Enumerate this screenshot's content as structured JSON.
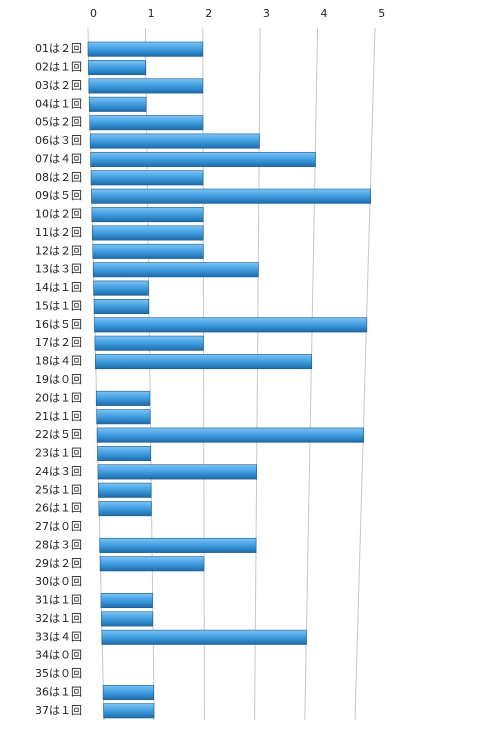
{
  "chart_data": {
    "type": "bar",
    "orientation": "horizontal",
    "categories": [
      "01は２回",
      "02は１回",
      "03は２回",
      "04は１回",
      "05は２回",
      "06は３回",
      "07は４回",
      "08は２回",
      "09は５回",
      "10は２回",
      "11は２回",
      "12は２回",
      "13は３回",
      "14は１回",
      "15は１回",
      "16は５回",
      "17は２回",
      "18は４回",
      "19は０回",
      "20は１回",
      "21は１回",
      "22は５回",
      "23は１回",
      "24は３回",
      "25は１回",
      "26は１回",
      "27は０回",
      "28は３回",
      "29は２回",
      "30は０回",
      "31は１回",
      "32は１回",
      "33は４回",
      "34は０回",
      "35は０回",
      "36は１回",
      "37は１回"
    ],
    "values": [
      2,
      1,
      2,
      1,
      2,
      3,
      4,
      2,
      5,
      2,
      2,
      2,
      3,
      1,
      1,
      5,
      2,
      4,
      0,
      1,
      1,
      5,
      1,
      3,
      1,
      1,
      0,
      3,
      2,
      0,
      1,
      1,
      4,
      0,
      0,
      1,
      1
    ],
    "color": "#3f9de0",
    "xlim": [
      0,
      5
    ],
    "xticks": [
      0,
      1,
      2,
      3,
      4,
      5
    ],
    "grid": true
  }
}
